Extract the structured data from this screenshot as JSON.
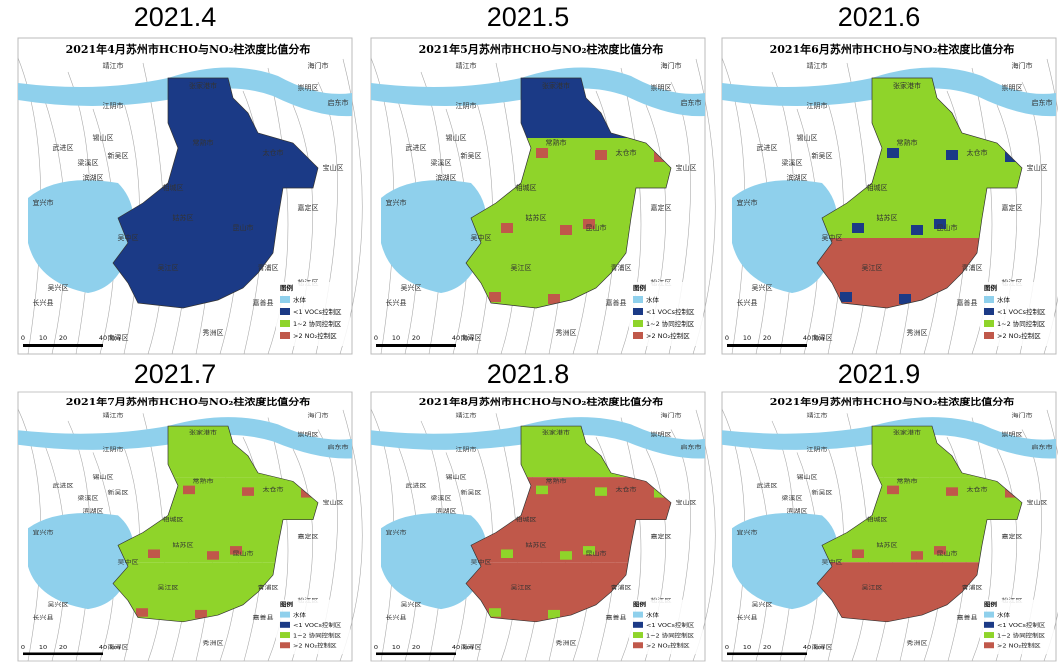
{
  "panels": [
    {
      "title": "2021.4",
      "map_title": "2021年4月苏州市HCHO与NO₂柱浓度比值分布"
    },
    {
      "title": "2021.5",
      "map_title": "2021年5月苏州市HCHO与NO₂柱浓度比值分布"
    },
    {
      "title": "2021.6",
      "map_title": "2021年6月苏州市HCHO与NO₂柱浓度比值分布"
    },
    {
      "title": "2021.7",
      "map_title": "2021年7月苏州市HCHO与NO₂柱浓度比值分布"
    },
    {
      "title": "2021.8",
      "map_title": "2021年8月苏州市HCHO与NO₂柱浓度比值分布"
    },
    {
      "title": "2021.9",
      "map_title": "2021年9月苏州市HCHO与NO₂柱浓度比值分布"
    }
  ],
  "legend": {
    "title": "图例",
    "items": [
      "水体",
      "<1 VOCs控制区",
      "1~2 协同控制区",
      ">2 NO₂控制区"
    ]
  },
  "scale": [
    "0",
    "10",
    "20",
    "40",
    "km"
  ],
  "places": [
    "靖江市",
    "江阴市",
    "锡山区",
    "武进区",
    "滨湖区",
    "宜兴市",
    "长兴县",
    "吴兴区",
    "南浔区",
    "秀洲区",
    "嘉善县",
    "青浦区",
    "松江区",
    "嘉定区",
    "宝山区",
    "崇明区",
    "海门市",
    "启东市",
    "张家港市",
    "常熟市",
    "太仓市",
    "昆山市",
    "相城区",
    "姑苏区",
    "吴中区",
    "吴江区",
    "梁溪区",
    "新吴区"
  ]
}
